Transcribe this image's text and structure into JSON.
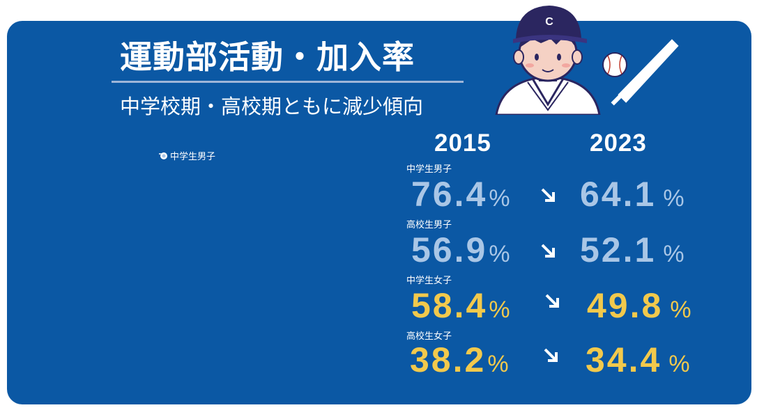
{
  "header": {
    "title": "運動部活動・加入率",
    "subtitle": "中学校期・高校期ともに減少傾向"
  },
  "legend": {
    "label": "中学生男子",
    "icon": "ball-icon"
  },
  "years": {
    "start": "2015",
    "end": "2023"
  },
  "colors": {
    "background": "#0b58a4",
    "male_values": "#a9c6e6",
    "female_values": "#f2c94c"
  },
  "rows": [
    {
      "label": "中学生男子",
      "start": "76.4",
      "end": "64.1",
      "unit": "%"
    },
    {
      "label": "高校生男子",
      "start": "56.9",
      "end": "52.1",
      "unit": "%"
    },
    {
      "label": "中学生女子",
      "start": "58.4",
      "end": "49.8",
      "unit": "%"
    },
    {
      "label": "高校生女子",
      "start": "38.2",
      "end": "34.4",
      "unit": "%"
    }
  ],
  "illustration": {
    "cap_letter": "C"
  }
}
